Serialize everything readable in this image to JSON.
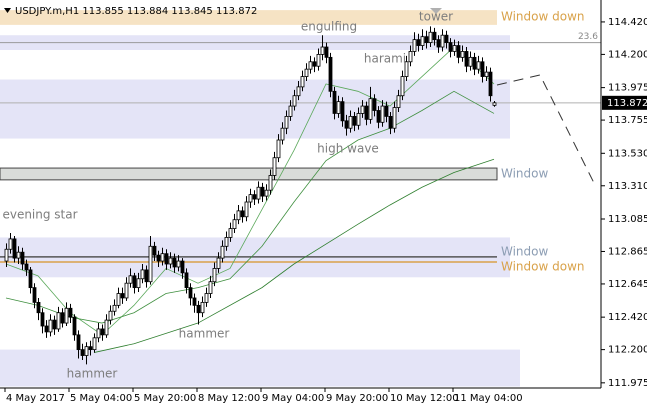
{
  "chart_data": {
    "type": "candlestick",
    "title": "USDJPY.m,H1  113.855 113.884 113.845 113.872",
    "categories": [
      "4 May 2017",
      null,
      null,
      null,
      null,
      null,
      null,
      null,
      null,
      null,
      null,
      null,
      null,
      null,
      null,
      null,
      "5 May 04:00",
      null,
      null,
      null,
      null,
      null,
      null,
      null,
      null,
      null,
      null,
      null,
      null,
      null,
      null,
      null,
      "5 May 20:00",
      null,
      null,
      null,
      null,
      null,
      null,
      null,
      null,
      null,
      null,
      null,
      null,
      null,
      null,
      null,
      "8 May 12:00",
      null,
      null,
      null,
      null,
      null,
      null,
      null,
      null,
      null,
      null,
      null,
      null,
      null,
      null,
      null,
      "9 May 04:00",
      null,
      null,
      null,
      null,
      null,
      null,
      null,
      null,
      null,
      null,
      null,
      null,
      null,
      null,
      null,
      "9 May 20:00",
      null,
      null,
      null,
      null,
      null,
      null,
      null,
      null,
      null,
      null,
      null,
      null,
      null,
      null,
      null,
      "10 May 12:00",
      null,
      null,
      null,
      null,
      null,
      null,
      null,
      null,
      null,
      null,
      null,
      null,
      null,
      null,
      null,
      "11 May 04:00",
      null,
      null,
      null,
      null,
      null,
      null,
      null,
      null,
      null,
      null
    ],
    "candles": [
      [
        112.8,
        112.92,
        112.76,
        112.88
      ],
      [
        112.88,
        112.99,
        112.85,
        112.95
      ],
      [
        112.95,
        112.97,
        112.79,
        112.82
      ],
      [
        112.82,
        112.9,
        112.78,
        112.86
      ],
      [
        112.86,
        112.89,
        112.74,
        112.78
      ],
      [
        112.78,
        112.81,
        112.7,
        112.74
      ],
      [
        112.74,
        112.76,
        112.58,
        112.62
      ],
      [
        112.62,
        112.65,
        112.48,
        112.52
      ],
      [
        112.52,
        112.55,
        112.4,
        112.45
      ],
      [
        112.45,
        112.48,
        112.31,
        112.36
      ],
      [
        112.36,
        112.4,
        112.28,
        112.32
      ],
      [
        112.32,
        112.44,
        112.29,
        112.4
      ],
      [
        112.4,
        112.43,
        112.3,
        112.34
      ],
      [
        112.34,
        112.49,
        112.32,
        112.45
      ],
      [
        112.45,
        112.48,
        112.35,
        112.38
      ],
      [
        112.38,
        112.52,
        112.36,
        112.48
      ],
      [
        112.48,
        112.51,
        112.38,
        112.42
      ],
      [
        112.42,
        112.44,
        112.26,
        112.3
      ],
      [
        112.3,
        112.33,
        112.14,
        112.2
      ],
      [
        112.2,
        112.24,
        112.13,
        112.16
      ],
      [
        112.16,
        112.25,
        112.1,
        112.22
      ],
      [
        112.22,
        112.26,
        112.16,
        112.2
      ],
      [
        112.2,
        112.31,
        112.18,
        112.28
      ],
      [
        112.28,
        112.38,
        112.25,
        112.34
      ],
      [
        112.34,
        112.37,
        112.26,
        112.3
      ],
      [
        112.3,
        112.44,
        112.28,
        112.4
      ],
      [
        112.4,
        112.5,
        112.37,
        112.46
      ],
      [
        112.46,
        112.54,
        112.43,
        112.5
      ],
      [
        112.5,
        112.62,
        112.48,
        112.58
      ],
      [
        112.58,
        112.62,
        112.51,
        112.55
      ],
      [
        112.55,
        112.69,
        112.53,
        112.65
      ],
      [
        112.65,
        112.75,
        112.62,
        112.7
      ],
      [
        112.7,
        112.72,
        112.58,
        112.62
      ],
      [
        112.62,
        112.72,
        112.59,
        112.68
      ],
      [
        112.68,
        112.78,
        112.65,
        112.74
      ],
      [
        112.74,
        112.77,
        112.62,
        112.66
      ],
      [
        112.66,
        112.97,
        112.64,
        112.9
      ],
      [
        112.9,
        112.93,
        112.8,
        112.84
      ],
      [
        112.84,
        112.87,
        112.76,
        112.8
      ],
      [
        112.8,
        112.89,
        112.77,
        112.85
      ],
      [
        112.85,
        112.88,
        112.74,
        112.78
      ],
      [
        112.78,
        112.86,
        112.75,
        112.82
      ],
      [
        112.82,
        112.85,
        112.72,
        112.76
      ],
      [
        112.76,
        112.84,
        112.73,
        112.8
      ],
      [
        112.8,
        112.82,
        112.68,
        112.72
      ],
      [
        112.72,
        112.75,
        112.58,
        112.62
      ],
      [
        112.62,
        112.65,
        112.5,
        112.55
      ],
      [
        112.55,
        112.58,
        112.45,
        112.5
      ],
      [
        112.5,
        112.53,
        112.37,
        112.45
      ],
      [
        112.45,
        112.56,
        112.42,
        112.52
      ],
      [
        112.52,
        112.62,
        112.49,
        112.58
      ],
      [
        112.58,
        112.7,
        112.55,
        112.66
      ],
      [
        112.66,
        112.79,
        112.63,
        112.75
      ],
      [
        112.75,
        112.86,
        112.72,
        112.82
      ],
      [
        112.82,
        112.94,
        112.79,
        112.9
      ],
      [
        112.9,
        113.0,
        112.87,
        112.96
      ],
      [
        112.96,
        113.06,
        112.93,
        113.02
      ],
      [
        113.02,
        113.12,
        112.99,
        113.08
      ],
      [
        113.08,
        113.18,
        113.05,
        113.14
      ],
      [
        113.14,
        113.17,
        113.06,
        113.1
      ],
      [
        113.1,
        113.24,
        113.07,
        113.2
      ],
      [
        113.2,
        113.29,
        113.16,
        113.25
      ],
      [
        113.25,
        113.28,
        113.18,
        113.22
      ],
      [
        113.22,
        113.34,
        113.19,
        113.3
      ],
      [
        113.3,
        113.33,
        113.2,
        113.24
      ],
      [
        113.24,
        113.32,
        113.21,
        113.28
      ],
      [
        113.28,
        113.42,
        113.25,
        113.38
      ],
      [
        113.38,
        113.54,
        113.35,
        113.5
      ],
      [
        113.5,
        113.66,
        113.47,
        113.62
      ],
      [
        113.62,
        113.74,
        113.59,
        113.7
      ],
      [
        113.7,
        113.82,
        113.66,
        113.78
      ],
      [
        113.78,
        113.89,
        113.75,
        113.85
      ],
      [
        113.85,
        113.96,
        113.82,
        113.92
      ],
      [
        113.92,
        114.02,
        113.89,
        113.98
      ],
      [
        113.98,
        114.09,
        113.95,
        114.05
      ],
      [
        114.05,
        114.14,
        114.02,
        114.1
      ],
      [
        114.1,
        114.19,
        114.07,
        114.15
      ],
      [
        114.15,
        114.18,
        114.08,
        114.12
      ],
      [
        114.12,
        114.24,
        114.09,
        114.2
      ],
      [
        114.2,
        114.33,
        114.16,
        114.25
      ],
      [
        114.25,
        114.28,
        114.14,
        114.18
      ],
      [
        114.18,
        114.21,
        113.91,
        113.95
      ],
      [
        113.95,
        113.98,
        113.76,
        113.8
      ],
      [
        113.8,
        113.92,
        113.77,
        113.88
      ],
      [
        113.88,
        113.91,
        113.71,
        113.75
      ],
      [
        113.75,
        113.79,
        113.65,
        113.7
      ],
      [
        113.7,
        113.82,
        113.67,
        113.78
      ],
      [
        113.78,
        113.81,
        113.68,
        113.72
      ],
      [
        113.72,
        113.84,
        113.69,
        113.8
      ],
      [
        113.8,
        113.89,
        113.77,
        113.85
      ],
      [
        113.85,
        113.88,
        113.72,
        113.76
      ],
      [
        113.76,
        113.98,
        113.73,
        113.9
      ],
      [
        113.9,
        113.93,
        113.78,
        113.82
      ],
      [
        113.82,
        113.85,
        113.7,
        113.74
      ],
      [
        113.74,
        113.89,
        113.71,
        113.85
      ],
      [
        113.85,
        113.88,
        113.74,
        113.78
      ],
      [
        113.78,
        113.81,
        113.66,
        113.7
      ],
      [
        113.7,
        113.88,
        113.67,
        113.84
      ],
      [
        113.84,
        113.96,
        113.81,
        113.92
      ],
      [
        113.92,
        114.09,
        113.89,
        114.05
      ],
      [
        114.05,
        114.19,
        114.02,
        114.15
      ],
      [
        114.15,
        114.26,
        114.12,
        114.22
      ],
      [
        114.22,
        114.35,
        114.19,
        114.3
      ],
      [
        114.3,
        114.34,
        114.22,
        114.26
      ],
      [
        114.26,
        114.37,
        114.23,
        114.32
      ],
      [
        114.32,
        114.36,
        114.24,
        114.28
      ],
      [
        114.28,
        114.39,
        114.25,
        114.35
      ],
      [
        114.35,
        114.38,
        114.26,
        114.3
      ],
      [
        114.3,
        114.33,
        114.21,
        114.25
      ],
      [
        114.25,
        114.37,
        114.22,
        114.33
      ],
      [
        114.33,
        114.36,
        114.24,
        114.28
      ],
      [
        114.28,
        114.31,
        114.18,
        114.22
      ],
      [
        114.22,
        114.3,
        114.19,
        114.26
      ],
      [
        114.26,
        114.29,
        114.14,
        114.18
      ],
      [
        114.18,
        114.26,
        114.15,
        114.22
      ],
      [
        114.22,
        114.25,
        114.08,
        114.12
      ],
      [
        114.12,
        114.22,
        114.09,
        114.18
      ],
      [
        114.18,
        114.21,
        114.06,
        114.1
      ],
      [
        114.1,
        114.19,
        114.07,
        114.15
      ],
      [
        114.15,
        114.18,
        114.01,
        114.05
      ],
      [
        114.05,
        114.12,
        114.02,
        114.08
      ],
      [
        114.08,
        114.11,
        113.88,
        113.92
      ],
      [
        113.855,
        113.884,
        113.845,
        113.872
      ]
    ],
    "ma": [
      {
        "color": "#5aa85a",
        "x": [
          0,
          8,
          16,
          24,
          32,
          40,
          48,
          56,
          64,
          72,
          80,
          88,
          96,
          104,
          112,
          122
        ],
        "values": [
          112.78,
          112.7,
          112.45,
          112.3,
          112.5,
          112.75,
          112.65,
          112.75,
          113.15,
          113.55,
          114.0,
          113.95,
          113.85,
          114.05,
          114.25,
          114.0
        ]
      },
      {
        "color": "#3f8f3f",
        "x": [
          0,
          8,
          16,
          24,
          32,
          40,
          48,
          56,
          64,
          72,
          80,
          88,
          96,
          104,
          112,
          122
        ],
        "values": [
          112.55,
          112.5,
          112.42,
          112.38,
          112.45,
          112.58,
          112.62,
          112.68,
          112.9,
          113.2,
          113.48,
          113.62,
          113.7,
          113.82,
          113.95,
          113.8
        ]
      },
      {
        "color": "#2f7f2f",
        "x": [
          22,
          32,
          48,
          64,
          72,
          88,
          96,
          104,
          112,
          122
        ],
        "values": [
          112.18,
          112.24,
          112.38,
          112.62,
          112.78,
          113.05,
          113.18,
          113.3,
          113.4,
          113.49
        ]
      }
    ],
    "zones": [
      {
        "low": 114.4,
        "high": 114.5,
        "color": "#f6e3c4"
      },
      {
        "low": 114.23,
        "high": 114.33,
        "color": "#e4e4f7"
      },
      {
        "low": 113.63,
        "high": 114.03,
        "color": "#e4e4f7"
      },
      {
        "low": 113.35,
        "high": 113.43,
        "color": "#d9dcd9"
      },
      {
        "low": 112.69,
        "high": 112.96,
        "color": "#e4e4f7"
      },
      {
        "low": 111.95,
        "high": 112.2,
        "color": "#e4e4f7"
      }
    ],
    "levels": [
      {
        "value": 112.828,
        "color": "#555555"
      },
      {
        "value": 112.794,
        "color": "#d9a24a"
      }
    ],
    "fib": {
      "label": "23.6",
      "value": 114.28
    },
    "current_price": 113.872,
    "annotations": [
      "tower",
      "engulfing",
      "harami",
      "high wave",
      "evening star",
      "hammer",
      "hammer",
      "Window down",
      "Window",
      "Window",
      "Window down"
    ],
    "ylim": [
      111.94,
      114.555
    ],
    "yticks": [
      {
        "value": 114.42,
        "label": "114.420"
      },
      {
        "value": 114.2,
        "label": "114.200"
      },
      113.975,
      113.755,
      {
        "value": 113.53,
        "label": "113.530"
      },
      {
        "value": 113.31,
        "label": "113.310"
      },
      113.085,
      112.865,
      112.645,
      {
        "value": 112.42,
        "label": "112.420"
      },
      {
        "value": 112.2,
        "label": "112.200"
      },
      111.975
    ]
  }
}
